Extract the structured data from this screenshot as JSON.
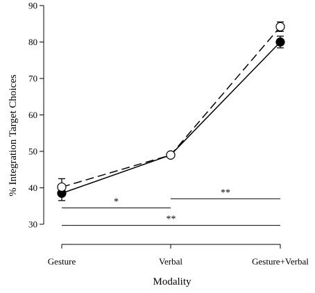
{
  "chart_data": {
    "type": "line",
    "title": "",
    "xlabel": "Modality",
    "ylabel": "% Integration Target Choices",
    "categories": [
      "Gesture",
      "Verbal",
      "Gesture+Verbal"
    ],
    "ylim": [
      30,
      90
    ],
    "yticks": [
      30,
      40,
      50,
      60,
      70,
      80,
      90
    ],
    "series": [
      {
        "marker": "filled-circle",
        "line_style": "solid",
        "color": "#000000",
        "values": [
          38.5,
          49,
          80
        ],
        "error": [
          2.0,
          0.5,
          1.6
        ]
      },
      {
        "marker": "open-circle",
        "line_style": "dashed",
        "color": "#000000",
        "values": [
          40.2,
          49,
          84.2
        ],
        "error": [
          2.3,
          0.5,
          1.3
        ]
      }
    ],
    "significance": [
      {
        "from": "Gesture",
        "to": "Verbal",
        "y": 34.5,
        "label": "*"
      },
      {
        "from": "Verbal",
        "to": "Gesture+Verbal",
        "y": 37,
        "label": "**"
      },
      {
        "from": "Gesture",
        "to": "Gesture+Verbal",
        "y": 29.7,
        "label": "**"
      }
    ]
  }
}
